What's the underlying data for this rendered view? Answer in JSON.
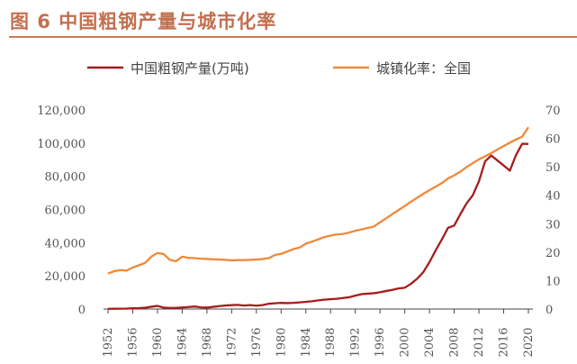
{
  "title": "图 6 中国粗钢产量与城市化率",
  "chart_data": {
    "type": "line",
    "title": "图 6 中国粗钢产量与城市化率",
    "legend_position": "top",
    "x": [
      1952,
      1953,
      1954,
      1955,
      1956,
      1957,
      1958,
      1959,
      1960,
      1961,
      1962,
      1963,
      1964,
      1965,
      1966,
      1967,
      1968,
      1969,
      1970,
      1971,
      1972,
      1973,
      1974,
      1975,
      1976,
      1977,
      1978,
      1979,
      1980,
      1981,
      1982,
      1983,
      1984,
      1985,
      1986,
      1987,
      1988,
      1989,
      1990,
      1991,
      1992,
      1993,
      1994,
      1995,
      1996,
      1997,
      1998,
      1999,
      2000,
      2001,
      2002,
      2003,
      2004,
      2005,
      2006,
      2007,
      2008,
      2009,
      2010,
      2011,
      2012,
      2013,
      2014,
      2015,
      2016,
      2017,
      2018,
      2019,
      2020
    ],
    "x_ticks": [
      "1952",
      "1956",
      "1960",
      "1964",
      "1968",
      "1972",
      "1976",
      "1980",
      "1984",
      "1988",
      "1992",
      "1996",
      "2000",
      "2004",
      "2008",
      "2012",
      "2016",
      "2020"
    ],
    "y_left": {
      "range": [
        0,
        120000
      ],
      "ticks": [
        "0",
        "20,000",
        "40,000",
        "60,000",
        "80,000",
        "100,000",
        "120,000"
      ]
    },
    "y_right": {
      "range": [
        0,
        70
      ],
      "ticks": [
        "0",
        "10",
        "20",
        "30",
        "40",
        "50",
        "60",
        "70"
      ]
    },
    "series": [
      {
        "name": "中国粗钢产量(万吨)",
        "axis": "left",
        "color": "#a61c1c",
        "values": [
          135,
          177,
          223,
          285,
          447,
          535,
          800,
          1387,
          1866,
          870,
          667,
          762,
          964,
          1223,
          1532,
          1029,
          904,
          1333,
          1779,
          2132,
          2338,
          2522,
          2112,
          2390,
          2046,
          2374,
          3178,
          3448,
          3712,
          3560,
          3716,
          4002,
          4347,
          4679,
          5221,
          5628,
          5943,
          6159,
          6635,
          7100,
          8094,
          8956,
          9261,
          9536,
          10124,
          10894,
          11559,
          12426,
          12850,
          15163,
          18237,
          22234,
          28291,
          35324,
          41915,
          48929,
          50306,
          57218,
          63723,
          68528,
          77000,
          89000,
          92500,
          89500,
          86500,
          83400,
          92800,
          99600,
          99500
        ]
      },
      {
        "name": "城镇化率：全国",
        "axis": "right",
        "color": "#f0883a",
        "values": [
          12.5,
          13.3,
          13.7,
          13.5,
          14.6,
          15.4,
          16.2,
          18.4,
          19.7,
          19.3,
          17.3,
          16.8,
          18.4,
          18.0,
          17.9,
          17.7,
          17.6,
          17.5,
          17.4,
          17.3,
          17.1,
          17.2,
          17.2,
          17.3,
          17.4,
          17.6,
          17.9,
          19.0,
          19.4,
          20.2,
          21.1,
          21.6,
          23.0,
          23.7,
          24.5,
          25.3,
          25.8,
          26.2,
          26.4,
          26.9,
          27.5,
          28.0,
          28.5,
          29.0,
          30.5,
          31.9,
          33.4,
          34.8,
          36.2,
          37.7,
          39.1,
          40.5,
          41.8,
          43.0,
          44.3,
          45.9,
          47.0,
          48.3,
          49.9,
          51.3,
          52.6,
          53.7,
          54.8,
          56.1,
          57.3,
          58.5,
          59.6,
          60.6,
          63.9
        ]
      }
    ]
  }
}
